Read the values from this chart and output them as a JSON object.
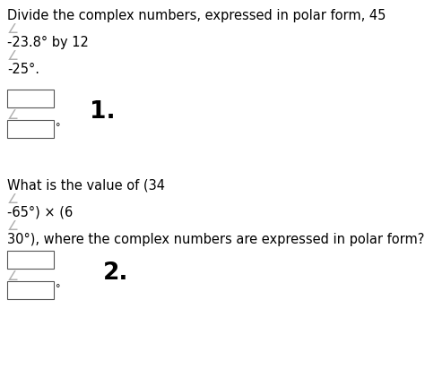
{
  "bg_color": "#ffffff",
  "text_color": "#000000",
  "gray_color": "#b0b0b0",
  "line1": "Divide the complex numbers, expressed in polar form, 45",
  "line2": "-23.8° by 12",
  "line3": "-25°.",
  "question2_line1": "What is the value of (34",
  "question2_line2": "-65°) × (6",
  "question2_line3": "30°), where the complex numbers are expressed in polar form?",
  "label1": "1.",
  "label2": "2.",
  "box_color": "#ffffff",
  "box_edge_color": "#555555",
  "font_size_text": 10.5,
  "font_size_label": 19,
  "degree_symbol": "°",
  "angle_symbol": "∠"
}
